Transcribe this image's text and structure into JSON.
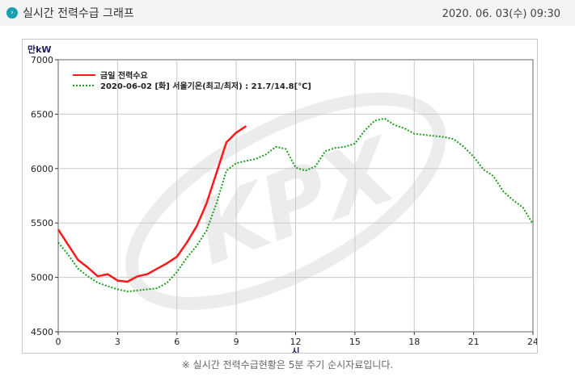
{
  "header": {
    "title": "실시간 전력수급 그래프",
    "timestamp": "2020. 06. 03(수) 09:30",
    "icon": "circle-chevron-icon"
  },
  "footer": {
    "note": "※ 실시간 전력수급현황은 5분 주기 순시자료입니다."
  },
  "watermark": "KPX",
  "colors": {
    "today": "#ff1a1a",
    "yesterday": "#1e9e1e",
    "axis_text": "#202060"
  },
  "chart_data": {
    "type": "line",
    "title": "",
    "xlabel": "시",
    "ylabel": "만kW",
    "xlim": [
      0,
      24
    ],
    "ylim": [
      4500,
      7000
    ],
    "xticks": [
      0,
      3,
      6,
      9,
      12,
      15,
      18,
      21,
      24
    ],
    "yticks": [
      4500,
      5000,
      5500,
      6000,
      6500,
      7000
    ],
    "grid": true,
    "legend_position": "top-left",
    "series": [
      {
        "name": "금일 전력수요",
        "style": "solid",
        "color": "#ff1a1a",
        "x": [
          0,
          0.5,
          1,
          1.5,
          2,
          2.5,
          3,
          3.5,
          4,
          4.5,
          5,
          5.5,
          6,
          6.5,
          7,
          7.5,
          8,
          8.5,
          9,
          9.5
        ],
        "y": [
          5440,
          5300,
          5160,
          5090,
          5010,
          5030,
          4970,
          4960,
          5010,
          5030,
          5080,
          5130,
          5190,
          5320,
          5470,
          5680,
          5960,
          6240,
          6330,
          6390
        ]
      },
      {
        "name": "2020-06-02 [화] 서울기온(최고/최저) : 21.7/14.8[℃]",
        "style": "dotted",
        "color": "#1e9e1e",
        "x": [
          0,
          0.5,
          1,
          1.5,
          2,
          2.5,
          3,
          3.5,
          4,
          4.5,
          5,
          5.5,
          6,
          6.5,
          7,
          7.5,
          8,
          8.5,
          9,
          9.5,
          10,
          10.5,
          11,
          11.5,
          12,
          12.5,
          13,
          13.5,
          14,
          14.5,
          15,
          15.5,
          16,
          16.5,
          17,
          17.5,
          18,
          18.5,
          19,
          19.5,
          20,
          20.5,
          21,
          21.5,
          22,
          22.5,
          23,
          23.5,
          24
        ],
        "y": [
          5320,
          5210,
          5080,
          5010,
          4950,
          4920,
          4890,
          4870,
          4880,
          4890,
          4900,
          4950,
          5050,
          5180,
          5290,
          5430,
          5680,
          5980,
          6050,
          6070,
          6090,
          6130,
          6200,
          6180,
          6010,
          5980,
          6020,
          6160,
          6190,
          6200,
          6230,
          6350,
          6440,
          6460,
          6400,
          6370,
          6320,
          6310,
          6300,
          6290,
          6270,
          6200,
          6110,
          5990,
          5930,
          5790,
          5710,
          5640,
          5490
        ]
      }
    ]
  }
}
